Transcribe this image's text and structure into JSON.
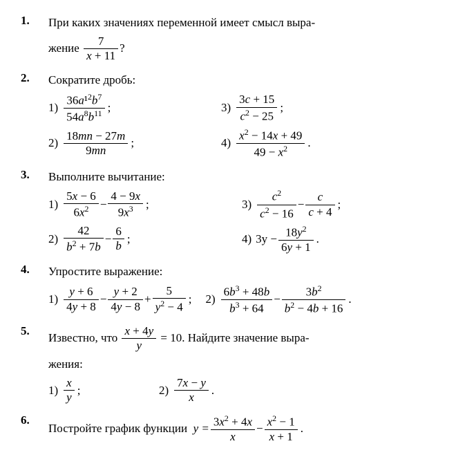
{
  "problems": [
    {
      "num": "1.",
      "text_a": "При каких значениях переменной имеет смысл выра-",
      "text_b": "жение",
      "frac": {
        "num": "7",
        "den": "x + 11"
      },
      "text_c": "?"
    },
    {
      "num": "2.",
      "text": "Сократите дробь:",
      "items": [
        {
          "lab": "1)",
          "num": "36a¹²b⁷",
          "den": "54a⁸b¹¹",
          "after": ";"
        },
        {
          "lab": "3)",
          "num": "3c + 15",
          "den": "c² − 25",
          "after": ";"
        },
        {
          "lab": "2)",
          "num": "18mn − 27m",
          "den": "9mn",
          "after": ";"
        },
        {
          "lab": "4)",
          "num": "x² − 14x + 49",
          "den": "49 − x²",
          "after": "."
        }
      ]
    },
    {
      "num": "3.",
      "text": "Выполните вычитание:",
      "items": [
        {
          "lab": "1)",
          "parts": [
            {
              "num": "5x − 6",
              "den": "6x²"
            },
            {
              "t": " − "
            },
            {
              "num": "4 − 9x",
              "den": "9x³"
            }
          ],
          "after": ";"
        },
        {
          "lab": "3)",
          "parts": [
            {
              "num": "c²",
              "den": "c² − 16"
            },
            {
              "t": " − "
            },
            {
              "num": "c",
              "den": "c + 4"
            }
          ],
          "after": ";"
        },
        {
          "lab": "2)",
          "parts": [
            {
              "num": "42",
              "den": "b² + 7b"
            },
            {
              "t": " − "
            },
            {
              "num": "6",
              "den": "b"
            }
          ],
          "after": ";"
        },
        {
          "lab": "4)",
          "parts": [
            {
              "t": "3y − "
            },
            {
              "num": "18y²",
              "den": "6y + 1"
            }
          ],
          "after": "."
        }
      ]
    },
    {
      "num": "4.",
      "text": "Упростите выражение:",
      "items": [
        {
          "lab": "1)",
          "parts": [
            {
              "num": "y + 6",
              "den": "4y + 8"
            },
            {
              "t": " − "
            },
            {
              "num": "y + 2",
              "den": "4y − 8"
            },
            {
              "t": " + "
            },
            {
              "num": "5",
              "den": "y² − 4"
            }
          ],
          "after": ";"
        },
        {
          "lab": "2)",
          "parts": [
            {
              "num": "6b³ + 48b",
              "den": "b³ + 64"
            },
            {
              "t": " − "
            },
            {
              "num": "3b²",
              "den": "b² − 4b + 16"
            }
          ],
          "after": "."
        }
      ]
    },
    {
      "num": "5.",
      "text_a": "Известно, что",
      "frac": {
        "num": "x + 4y",
        "den": "y"
      },
      "text_b": "= 10. Найдите значение выра-",
      "text_c": "жения:",
      "items": [
        {
          "lab": "1)",
          "num": "x",
          "den": "y",
          "after": ";"
        },
        {
          "lab": "2)",
          "num": "7x − y",
          "den": "x",
          "after": "."
        }
      ]
    },
    {
      "num": "6.",
      "text": "Постройте график функции",
      "eq_pre": "y = ",
      "parts": [
        {
          "num": "3x² + 4x",
          "den": "x"
        },
        {
          "t": " − "
        },
        {
          "num": "x² − 1",
          "den": "x + 1"
        }
      ],
      "after": "."
    }
  ]
}
